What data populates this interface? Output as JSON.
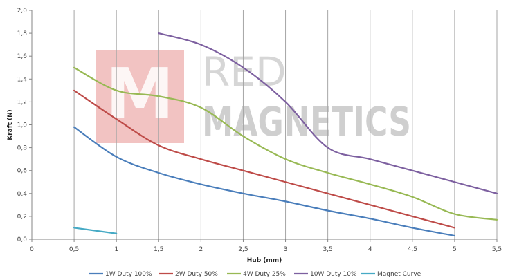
{
  "chart_data": {
    "type": "line",
    "title": "",
    "xlabel": "Hub (mm)",
    "ylabel": "Kraft (N)",
    "xlim": [
      0,
      5.5
    ],
    "ylim": [
      0,
      2.0
    ],
    "x_ticks": [
      "0",
      "0,5",
      "1",
      "1,5",
      "2",
      "2,5",
      "3",
      "3,5",
      "4",
      "4,5",
      "5",
      "5,5"
    ],
    "y_ticks": [
      "0,0",
      "0,2",
      "0,4",
      "0,6",
      "0,8",
      "1,0",
      "1,2",
      "1,4",
      "1,6",
      "1,8",
      "2,0"
    ],
    "grid": "vertical",
    "legend_position": "bottom",
    "series": [
      {
        "name": "1W Duty 100%",
        "color": "#4a7ebb",
        "x": [
          0.5,
          1.0,
          1.5,
          2.0,
          2.5,
          3.0,
          3.5,
          4.0,
          4.5,
          5.0
        ],
        "y": [
          0.98,
          0.72,
          0.58,
          0.48,
          0.4,
          0.33,
          0.25,
          0.18,
          0.1,
          0.03
        ]
      },
      {
        "name": "2W Duty 50%",
        "color": "#be4b48",
        "x": [
          0.5,
          1.0,
          1.5,
          2.0,
          2.5,
          3.0,
          3.5,
          4.0,
          4.5,
          5.0
        ],
        "y": [
          1.3,
          1.05,
          0.82,
          0.7,
          0.6,
          0.5,
          0.4,
          0.3,
          0.2,
          0.1
        ]
      },
      {
        "name": "4W Duty 25%",
        "color": "#98b954",
        "x": [
          0.5,
          1.0,
          1.5,
          2.0,
          2.5,
          3.0,
          3.5,
          4.0,
          4.5,
          5.0,
          5.5
        ],
        "y": [
          1.5,
          1.3,
          1.25,
          1.15,
          0.9,
          0.7,
          0.58,
          0.48,
          0.37,
          0.22,
          0.17
        ]
      },
      {
        "name": "10W Duty 10%",
        "color": "#7d60a0",
        "x": [
          1.5,
          2.0,
          2.5,
          3.0,
          3.5,
          4.0,
          4.5,
          5.0,
          5.5
        ],
        "y": [
          1.8,
          1.7,
          1.5,
          1.2,
          0.8,
          0.7,
          0.6,
          0.5,
          0.4
        ]
      },
      {
        "name": "Magnet Curve",
        "color": "#46aac5",
        "x": [
          0.5,
          1.0
        ],
        "y": [
          0.1,
          0.05
        ]
      }
    ]
  },
  "watermark": {
    "line1": "RED",
    "line2": "MAGNETICS",
    "logo_letter": "M",
    "logo_color": "#e7a6a4",
    "text_color": "#cfcfcf"
  }
}
